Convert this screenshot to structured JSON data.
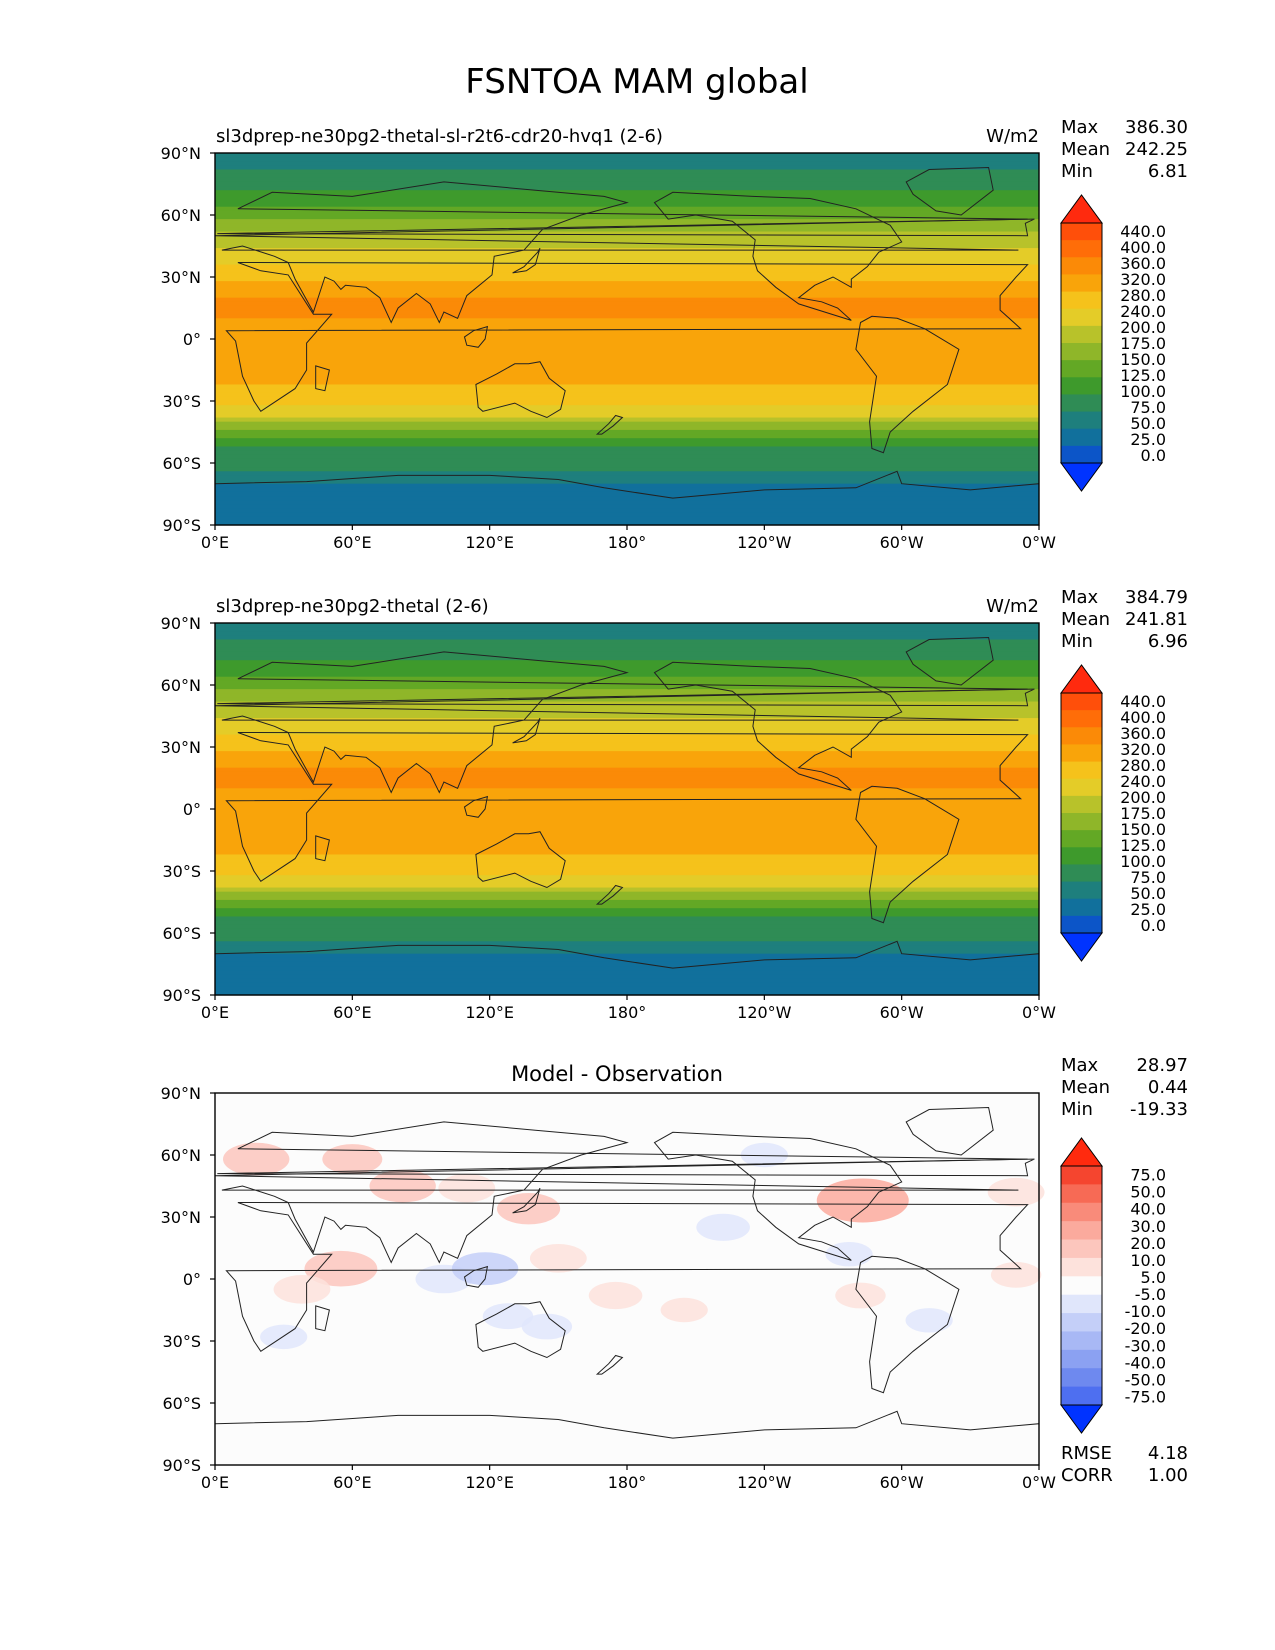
{
  "figure": {
    "title": "FSNTOA MAM global",
    "colors": {
      "frame": "#000000",
      "coast": "#222222",
      "background": "#ffffff"
    }
  },
  "chart_data": [
    {
      "type": "heatmap",
      "panel": "test",
      "title": "sl3dprep-ne30pg2-thetal-sl-r2t6-cdr20-hvq1 (2-6)",
      "units": "W/m2",
      "stats": {
        "labels": [
          "Max",
          "Mean",
          "Min"
        ],
        "values": [
          "386.30",
          "242.25",
          "6.81"
        ]
      },
      "x_ticks": [
        "0°E",
        "60°E",
        "120°E",
        "180°",
        "120°W",
        "60°W",
        "0°W"
      ],
      "y_ticks": [
        "90°N",
        "60°N",
        "30°N",
        "0°",
        "30°S",
        "60°S",
        "90°S"
      ],
      "xlim": [
        0,
        360
      ],
      "ylim": [
        -90,
        90
      ],
      "colorbar": {
        "levels": [
          "440.0",
          "400.0",
          "360.0",
          "320.0",
          "280.0",
          "240.0",
          "200.0",
          "175.0",
          "150.0",
          "125.0",
          "100.0",
          "75.0",
          "50.0",
          "25.0",
          "0.0"
        ],
        "colors": [
          "#ff2a0e",
          "#ff4f0a",
          "#ff6d08",
          "#fb8a07",
          "#f9a40a",
          "#f5c21b",
          "#e4cc28",
          "#b8c22a",
          "#8fb629",
          "#63a825",
          "#3e9a2c",
          "#2f8c55",
          "#1e7f7d",
          "#11709c",
          "#0c55c8",
          "#0033ff"
        ]
      },
      "profile": {
        "lat": [
          -90,
          -72,
          -66,
          -60,
          -54,
          -48,
          -42,
          -36,
          -30,
          -20,
          -10,
          0,
          10,
          20,
          30,
          40,
          48,
          56,
          62,
          70,
          80,
          90
        ],
        "value": [
          40,
          40,
          70,
          85,
          95,
          120,
          165,
          215,
          250,
          285,
          315,
          300,
          320,
          320,
          265,
          220,
          185,
          160,
          130,
          105,
          80,
          60
        ]
      }
    },
    {
      "type": "heatmap",
      "panel": "reference",
      "title": "sl3dprep-ne30pg2-thetal (2-6)",
      "units": "W/m2",
      "stats": {
        "labels": [
          "Max",
          "Mean",
          "Min"
        ],
        "values": [
          "384.79",
          "241.81",
          "6.96"
        ]
      },
      "x_ticks": [
        "0°E",
        "60°E",
        "120°E",
        "180°",
        "120°W",
        "60°W",
        "0°W"
      ],
      "y_ticks": [
        "90°N",
        "60°N",
        "30°N",
        "0°",
        "30°S",
        "60°S",
        "90°S"
      ],
      "xlim": [
        0,
        360
      ],
      "ylim": [
        -90,
        90
      ],
      "colorbar": {
        "levels": [
          "440.0",
          "400.0",
          "360.0",
          "320.0",
          "280.0",
          "240.0",
          "200.0",
          "175.0",
          "150.0",
          "125.0",
          "100.0",
          "75.0",
          "50.0",
          "25.0",
          "0.0"
        ],
        "colors": [
          "#ff2a0e",
          "#ff4f0a",
          "#ff6d08",
          "#fb8a07",
          "#f9a40a",
          "#f5c21b",
          "#e4cc28",
          "#b8c22a",
          "#8fb629",
          "#63a825",
          "#3e9a2c",
          "#2f8c55",
          "#1e7f7d",
          "#11709c",
          "#0c55c8",
          "#0033ff"
        ]
      },
      "profile": {
        "lat": [
          -90,
          -72,
          -66,
          -60,
          -54,
          -48,
          -42,
          -36,
          -30,
          -20,
          -10,
          0,
          10,
          20,
          30,
          40,
          48,
          56,
          62,
          70,
          80,
          90
        ],
        "value": [
          40,
          40,
          70,
          85,
          95,
          120,
          165,
          215,
          250,
          285,
          315,
          300,
          320,
          320,
          265,
          220,
          185,
          160,
          130,
          105,
          80,
          60
        ]
      }
    },
    {
      "type": "heatmap",
      "panel": "difference",
      "title": "Model - Observation",
      "stats": {
        "labels": [
          "Max",
          "Mean",
          "Min"
        ],
        "values": [
          "28.97",
          "0.44",
          "-19.33"
        ]
      },
      "metrics": {
        "labels": [
          "RMSE",
          "CORR"
        ],
        "values": [
          "4.18",
          "1.00"
        ]
      },
      "x_ticks": [
        "0°E",
        "60°E",
        "120°E",
        "180°",
        "120°W",
        "60°W",
        "0°W"
      ],
      "y_ticks": [
        "90°N",
        "60°N",
        "30°N",
        "0°",
        "30°S",
        "60°S",
        "90°S"
      ],
      "xlim": [
        0,
        360
      ],
      "ylim": [
        -90,
        90
      ],
      "colorbar": {
        "levels": [
          "75.0",
          "50.0",
          "40.0",
          "30.0",
          "20.0",
          "10.0",
          "5.0",
          "-5.0",
          "-10.0",
          "-20.0",
          "-30.0",
          "-40.0",
          "-50.0",
          "-75.0"
        ],
        "colors": [
          "#ff2a0e",
          "#f5452f",
          "#f76a55",
          "#f98b7a",
          "#fbaa9d",
          "#fcc6bd",
          "#fde2dc",
          "#fcfcfc",
          "#e0e6fb",
          "#c4cff8",
          "#a8b8f5",
          "#8ba1f2",
          "#6e89ef",
          "#4e6ff0",
          "#0033ff"
        ]
      },
      "anomalies": [
        {
          "lon": 18,
          "lat": 58,
          "value": 12
        },
        {
          "lon": 60,
          "lat": 58,
          "value": 10
        },
        {
          "lon": 82,
          "lat": 45,
          "value": 12
        },
        {
          "lon": 110,
          "lat": 44,
          "value": 9
        },
        {
          "lon": 137,
          "lat": 34,
          "value": 11
        },
        {
          "lon": 150,
          "lat": 10,
          "value": 9
        },
        {
          "lon": 55,
          "lat": 5,
          "value": 14
        },
        {
          "lon": 38,
          "lat": -5,
          "value": 9
        },
        {
          "lon": 100,
          "lat": 0,
          "value": -9
        },
        {
          "lon": 118,
          "lat": 5,
          "value": -12
        },
        {
          "lon": 128,
          "lat": -18,
          "value": -7
        },
        {
          "lon": 145,
          "lat": -23,
          "value": -7
        },
        {
          "lon": 175,
          "lat": -8,
          "value": 8
        },
        {
          "lon": 222,
          "lat": 25,
          "value": -8
        },
        {
          "lon": 240,
          "lat": 60,
          "value": -6
        },
        {
          "lon": 283,
          "lat": 38,
          "value": 20
        },
        {
          "lon": 277,
          "lat": 12,
          "value": -6
        },
        {
          "lon": 282,
          "lat": -8,
          "value": 7
        },
        {
          "lon": 312,
          "lat": -20,
          "value": -6
        },
        {
          "lon": 350,
          "lat": 42,
          "value": 9
        },
        {
          "lon": 350,
          "lat": 2,
          "value": 7
        },
        {
          "lon": 205,
          "lat": -15,
          "value": 6
        },
        {
          "lon": 30,
          "lat": -28,
          "value": -6
        }
      ]
    }
  ]
}
